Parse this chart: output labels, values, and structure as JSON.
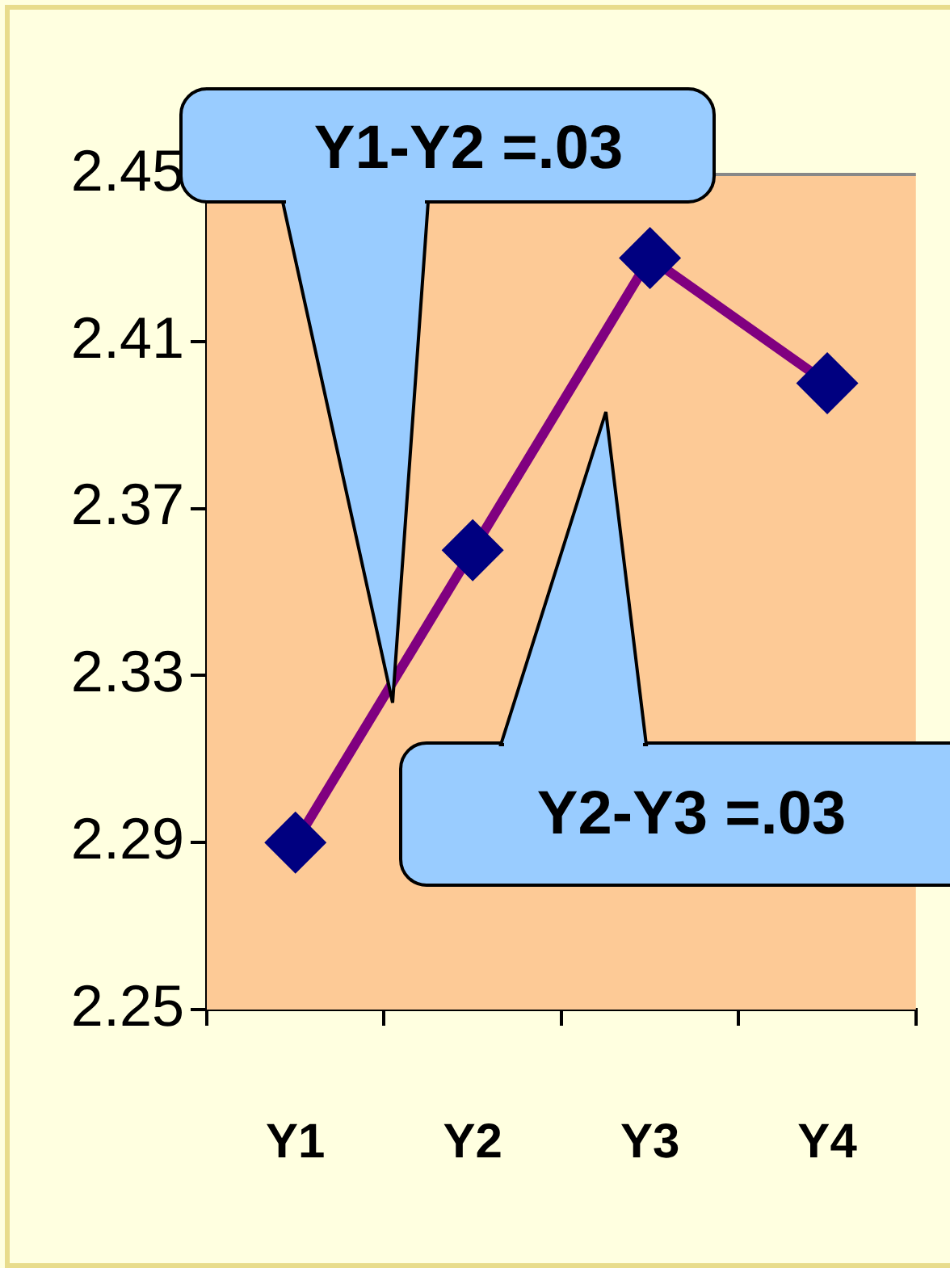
{
  "chart_data": {
    "type": "line",
    "categories": [
      "Y1",
      "Y2",
      "Y3",
      "Y4"
    ],
    "series": [
      {
        "color": "#800080",
        "values": [
          2.29,
          2.36,
          2.43,
          2.4
        ]
      }
    ],
    "ylim": [
      2.25,
      2.45
    ],
    "yticks": [
      2.25,
      2.29,
      2.33,
      2.37,
      2.41,
      2.45
    ],
    "marker": "diamond",
    "grid": false,
    "legend": false,
    "annotations": [
      "Y1-Y2 =.03",
      "Y2-Y3 =.03"
    ]
  }
}
